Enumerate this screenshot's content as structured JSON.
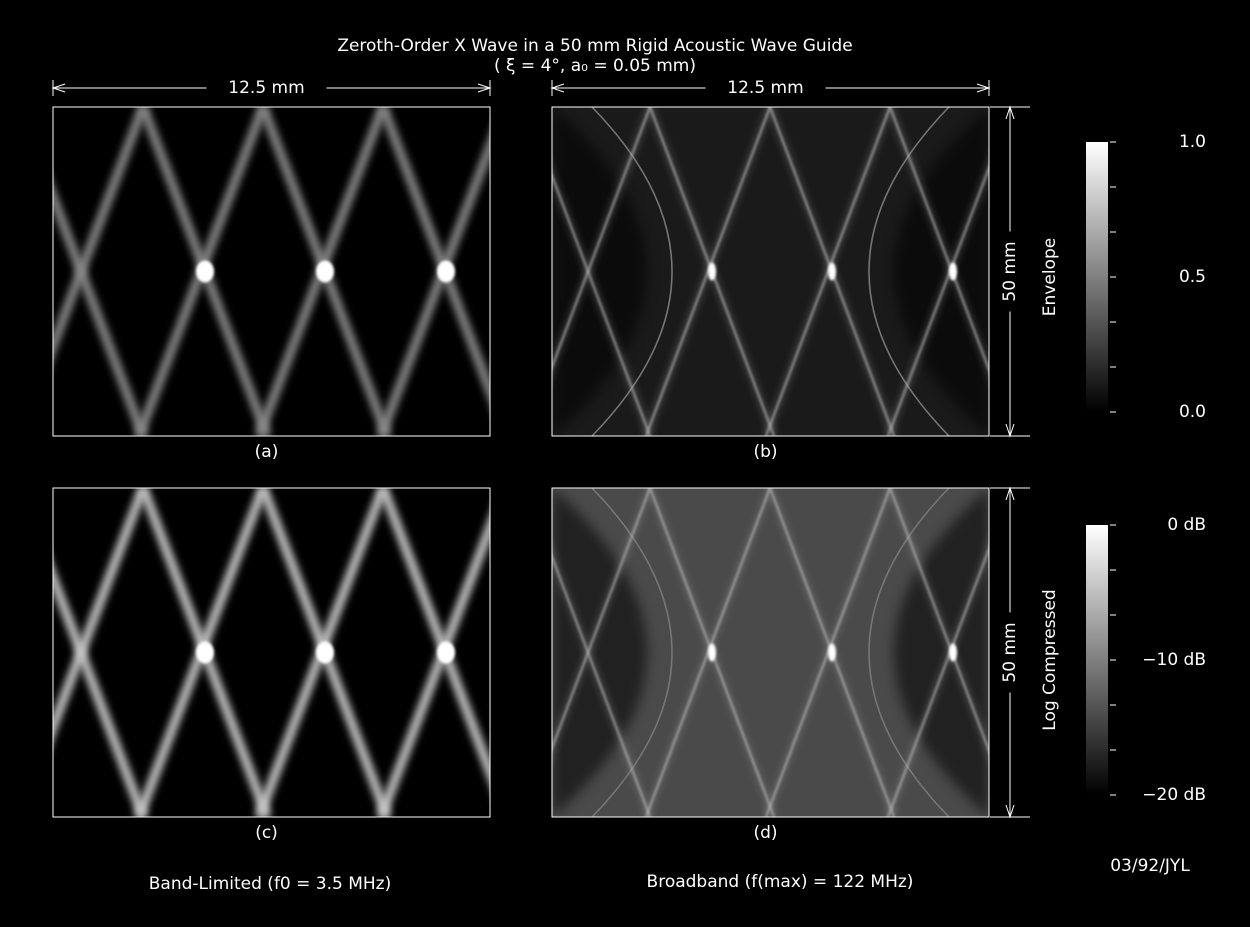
{
  "title": "Zeroth-Order X Wave in a 50 mm Rigid Acoustic Wave Guide",
  "subtitle": "( ξ = 4°, a₀ = 0.05 mm)",
  "dimensions": {
    "width_left": "12.5 mm",
    "width_right": "12.5 mm",
    "height_top": "50 mm",
    "height_bottom": "50 mm"
  },
  "panels": [
    {
      "label": "(a)"
    },
    {
      "label": "(b)"
    },
    {
      "label": "(c)"
    },
    {
      "label": "(d)"
    }
  ],
  "colorbars": [
    {
      "title": "Envelope",
      "ticks": [
        "1.0",
        "0.5",
        "0.0"
      ]
    },
    {
      "title": "Log Compressed",
      "ticks": [
        "0 dB",
        "−10 dB",
        "−20 dB"
      ]
    }
  ],
  "captions": {
    "left": "Band-Limited (f0 = 3.5 MHz)",
    "right": "Broadband (f(max) = 122 MHz)"
  },
  "credit": "03/92/JYL"
}
